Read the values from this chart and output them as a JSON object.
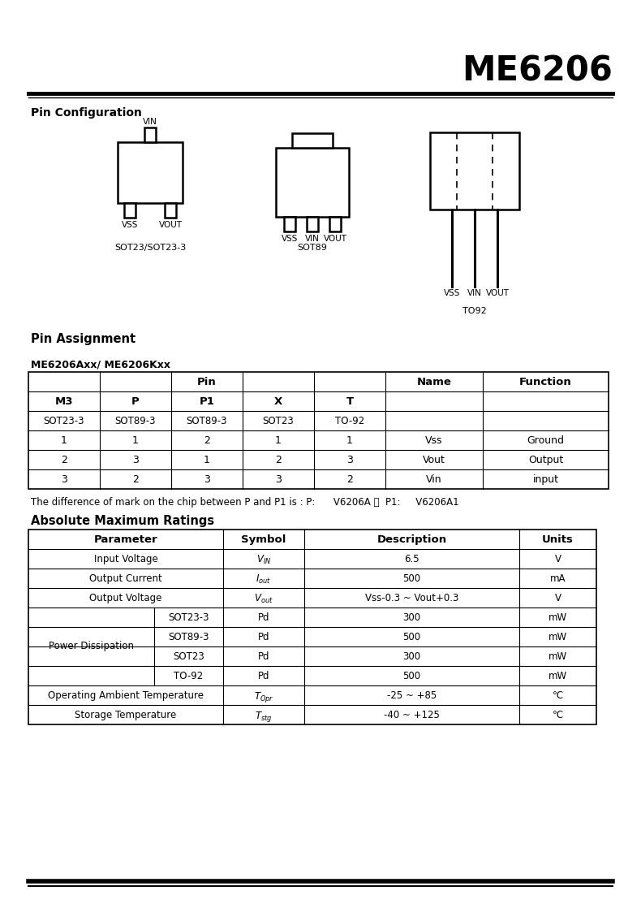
{
  "title": "ME6206",
  "bg_color": "#ffffff",
  "section1_title": "Pin Configuration",
  "section2_title": "Pin Assignment",
  "sub2_title": "ME6206Axx/ ME6206Kxx",
  "section3_title": "Absolute Maximum Ratings",
  "pin_table_headers_row1": [
    "Pin",
    "Name",
    "Function"
  ],
  "pin_table_headers_row2": [
    "M3",
    "P",
    "P1",
    "X",
    "T",
    "Name",
    "Function"
  ],
  "pin_table_sub": [
    "SOT23-3",
    "SOT89-3",
    "SOT89-3",
    "SOT23",
    "TO-92",
    "",
    ""
  ],
  "pin_table_data": [
    [
      "1",
      "1",
      "2",
      "1",
      "1",
      "Vss",
      "Ground"
    ],
    [
      "2",
      "3",
      "1",
      "2",
      "3",
      "Vout",
      "Output"
    ],
    [
      "3",
      "2",
      "3",
      "3",
      "2",
      "Vin",
      "input"
    ]
  ],
  "abs_table_headers": [
    "Parameter",
    "Symbol",
    "Description",
    "Units"
  ],
  "abs_rows": [
    {
      "param": "Input Voltage",
      "sub": "",
      "sym": "VIN",
      "desc": "6.5",
      "units": "V",
      "is_pd": false
    },
    {
      "param": "Output Current",
      "sub": "",
      "sym": "Iout",
      "desc": "500",
      "units": "mA",
      "is_pd": false
    },
    {
      "param": "Output Voltage",
      "sub": "",
      "sym": "Vout",
      "desc": "Vss-0.3 ~ Vout+0.3",
      "units": "V",
      "is_pd": false
    },
    {
      "param": "Power Dissipation",
      "sub": "SOT23-3",
      "sym": "Pd",
      "desc": "300",
      "units": "mW",
      "is_pd": true
    },
    {
      "param": "Power Dissipation",
      "sub": "SOT89-3",
      "sym": "Pd",
      "desc": "500",
      "units": "mW",
      "is_pd": true
    },
    {
      "param": "Power Dissipation",
      "sub": "SOT23",
      "sym": "Pd",
      "desc": "300",
      "units": "mW",
      "is_pd": true
    },
    {
      "param": "Power Dissipation",
      "sub": "TO-92",
      "sym": "Pd",
      "desc": "500",
      "units": "mW",
      "is_pd": true
    },
    {
      "param": "Operating Ambient Temperature",
      "sub": "",
      "sym": "TOpr",
      "desc": "-25 ~ +85",
      "units": "℃",
      "is_pd": false
    },
    {
      "param": "Storage Temperature",
      "sub": "",
      "sym": "Tstg",
      "desc": "-40 ~ +125",
      "units": "℃",
      "is_pd": false
    }
  ]
}
